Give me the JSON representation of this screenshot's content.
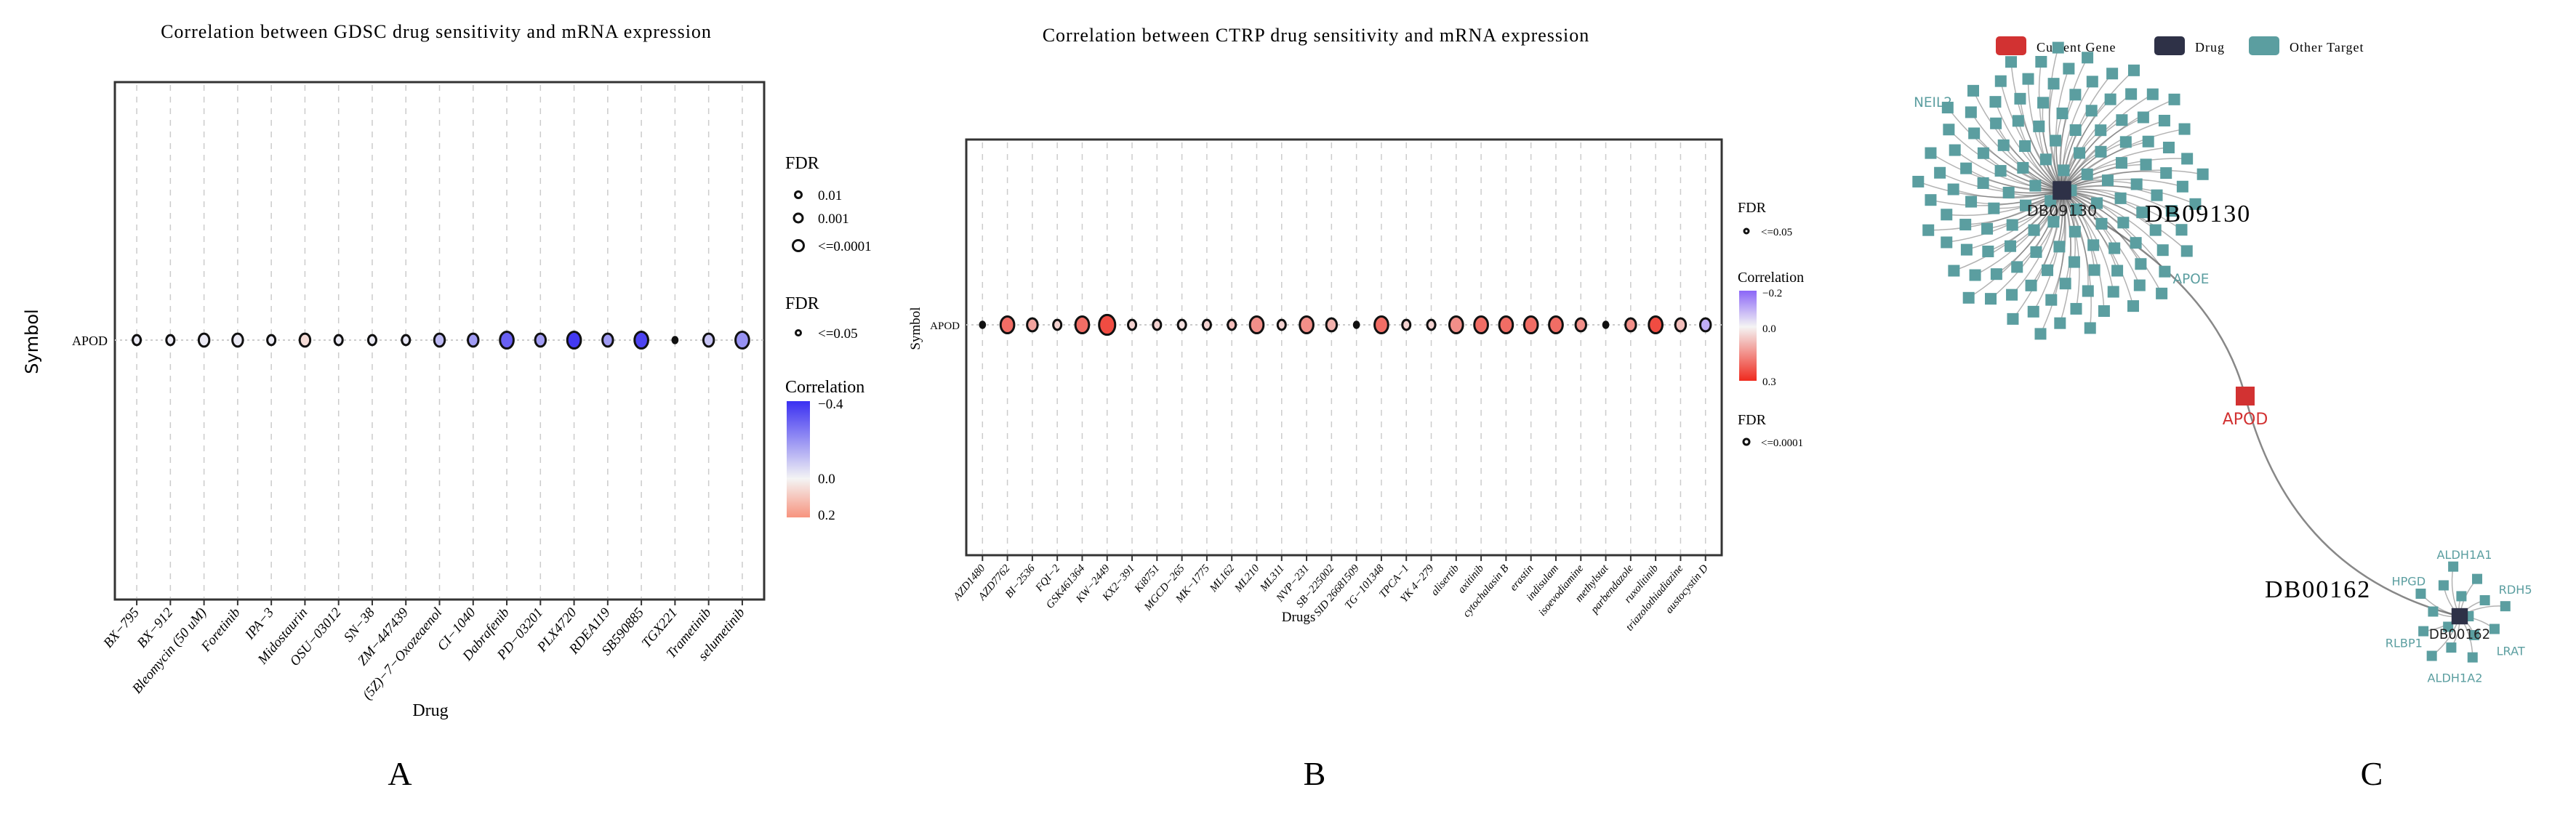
{
  "panel_labels": [
    "A",
    "B",
    "C"
  ],
  "chart_data": [
    {
      "type": "scatter",
      "title": "Correlation between GDSC drug sensitivity and mRNA expression",
      "xlabel": "Drug",
      "ylabel": "Symbol",
      "y_categories": [
        "APOD"
      ],
      "grid": true,
      "legend_placement": "right",
      "categories": [
        "BX−795",
        "BX−912",
        "Bleomycin (50 uM)",
        "Foretinib",
        "IPA−3",
        "Midostaurin",
        "OSU−03012",
        "SN−38",
        "ZM−447439",
        "(5Z)−7−Oxozeaenol",
        "CI−1040",
        "Dabrafenib",
        "PD−03201",
        "PLX4720",
        "RDEA119",
        "SB590885",
        "TGX221",
        "Trametinib",
        "selumetinib"
      ],
      "correlation": [
        -0.02,
        -0.02,
        -0.02,
        -0.02,
        -0.02,
        0.05,
        -0.02,
        -0.02,
        -0.03,
        -0.12,
        -0.18,
        -0.3,
        -0.18,
        -0.38,
        -0.18,
        -0.36,
        0,
        -0.1,
        -0.2
      ],
      "fdr": [
        0.01,
        0.01,
        0.001,
        0.001,
        0.01,
        0.001,
        0.01,
        0.01,
        0.01,
        0.001,
        0.001,
        0.0001,
        0.001,
        0.0001,
        0.001,
        0.0001,
        0.05,
        0.001,
        0.0001
      ],
      "size_legend": {
        "title": "FDR",
        "items": [
          "0.01",
          "0.001",
          "<=0.0001"
        ]
      },
      "sig_legend": {
        "title": "FDR",
        "items": [
          "<=0.05"
        ]
      },
      "color_legend": {
        "title": "Correlation",
        "ticks": [
          "−0.4",
          "0.0",
          "0.2"
        ],
        "range": [
          -0.4,
          0.2
        ],
        "colors": {
          "low": "#3a2ff2",
          "mid": "#f4f4f4",
          "high": "#f7937e"
        }
      }
    },
    {
      "type": "scatter",
      "title": "Correlation between CTRP drug sensitivity and mRNA expression",
      "xlabel": "Drugs",
      "ylabel": "Symbol",
      "y_categories": [
        "APOD"
      ],
      "grid": true,
      "legend_placement": "right",
      "categories": [
        "AZD1480",
        "AZD7762",
        "BI−2536",
        "FQI−2",
        "GSK461364",
        "KW−2449",
        "KX2−391",
        "Ki8751",
        "MGCD−265",
        "MK−1775",
        "ML162",
        "ML210",
        "ML311",
        "NVP−231",
        "SB−225002",
        "SID 26681509",
        "TG−101348",
        "TPCA−1",
        "YK 4−279",
        "alisertib",
        "axitinib",
        "cytochalasin B",
        "erastin",
        "indisulam",
        "isoevodiamine",
        "methylstat",
        "parbendazole",
        "ruxolitinib",
        "triazolothiadiazine",
        "austocystin D"
      ],
      "correlation": [
        0.22,
        0.2,
        0.12,
        0.05,
        0.2,
        0.25,
        0.05,
        0.05,
        0.03,
        0.05,
        0.08,
        0.15,
        0.05,
        0.15,
        0.1,
        0.05,
        0.2,
        0.05,
        0.05,
        0.15,
        0.2,
        0.2,
        0.2,
        0.2,
        0.15,
        0,
        0.15,
        0.25,
        0.08,
        -0.1
      ],
      "fdr": [
        0.05,
        0.0001,
        0.001,
        0.01,
        0.0001,
        1e-05,
        0.01,
        0.01,
        0.01,
        0.01,
        0.01,
        0.0001,
        0.01,
        0.0001,
        0.001,
        0.05,
        0.0001,
        0.01,
        0.01,
        0.0001,
        0.0001,
        0.0001,
        0.0001,
        0.0001,
        0.001,
        0.05,
        0.001,
        0.0001,
        0.001,
        0.001
      ],
      "sig_legend": {
        "title": "FDR",
        "items": [
          "<=0.05"
        ]
      },
      "color_legend": {
        "title": "Correlation",
        "ticks": [
          "−0.2",
          "0.0",
          "0.3"
        ],
        "range": [
          -0.2,
          0.3
        ],
        "colors": {
          "low": "#8b66f7",
          "mid": "#f4f4f4",
          "high": "#ef2a1e"
        }
      },
      "size_legend": {
        "title": "FDR",
        "items": [
          "<=0.0001"
        ]
      }
    }
  ],
  "network": {
    "legend": [
      {
        "label": "Current Gene",
        "color": "#d23232"
      },
      {
        "label": "Drug",
        "color": "#2e3147"
      },
      {
        "label": "Other Target",
        "color": "#5b9ea0"
      }
    ],
    "gene": {
      "label": "APOD",
      "color": "#d23232"
    },
    "drugs": [
      {
        "id": "DB09130",
        "big_label": "DB09130",
        "targets": [
          "APOE",
          "NEIL2"
        ]
      },
      {
        "id": "DB00162",
        "big_label": "DB00162",
        "targets": [
          "LRAT",
          "ALDH1A2",
          "RLBP1",
          "HPGD",
          "ALDH1A1",
          "RDH5"
        ]
      }
    ]
  }
}
